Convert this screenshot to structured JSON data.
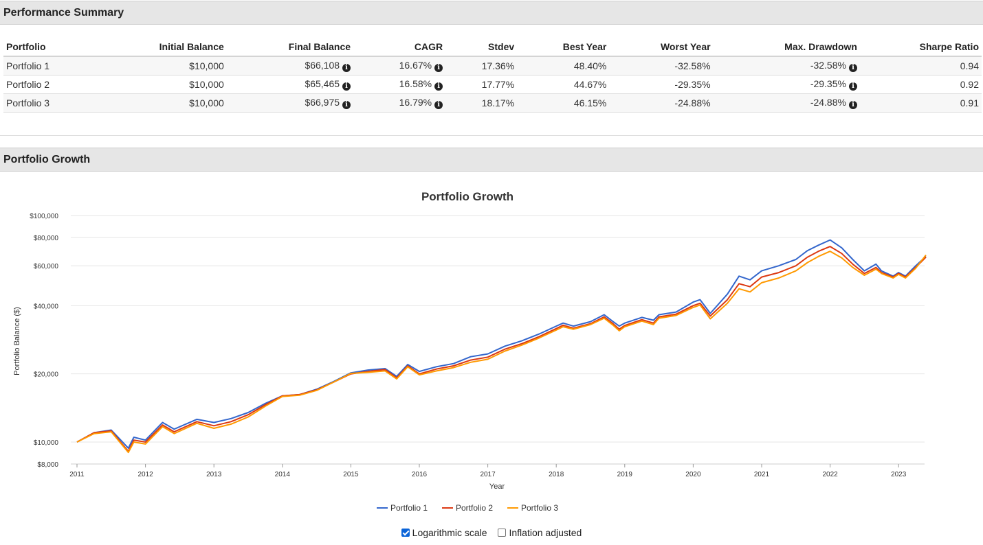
{
  "performance": {
    "title": "Performance Summary",
    "columns": [
      "Portfolio",
      "Initial Balance",
      "Final Balance",
      "CAGR",
      "Stdev",
      "Best Year",
      "Worst Year",
      "Max. Drawdown",
      "Sharpe Ratio"
    ],
    "rows": [
      {
        "portfolio": "Portfolio 1",
        "initial": "$10,000",
        "final": "$66,108",
        "cagr": "16.67%",
        "stdev": "17.36%",
        "best": "48.40%",
        "worst": "-32.58%",
        "drawdown": "-32.58%",
        "sharpe": "0.94"
      },
      {
        "portfolio": "Portfolio 2",
        "initial": "$10,000",
        "final": "$65,465",
        "cagr": "16.58%",
        "stdev": "17.77%",
        "best": "44.67%",
        "worst": "-29.35%",
        "drawdown": "-29.35%",
        "sharpe": "0.92"
      },
      {
        "portfolio": "Portfolio 3",
        "initial": "$10,000",
        "final": "$66,975",
        "cagr": "16.79%",
        "stdev": "18.17%",
        "best": "46.15%",
        "worst": "-24.88%",
        "drawdown": "-24.88%",
        "sharpe": "0.91"
      }
    ]
  },
  "growth": {
    "section_title": "Portfolio Growth"
  },
  "options": {
    "log_scale_label": "Logarithmic scale",
    "log_scale_checked": true,
    "inflation_label": "Inflation adjusted",
    "inflation_checked": false
  },
  "chart_data": {
    "type": "line",
    "title": "Portfolio Growth",
    "xlabel": "Year",
    "ylabel": "Portfolio Balance ($)",
    "y_scale": "log",
    "ylim": [
      8000,
      100000
    ],
    "xlim": [
      2011.0,
      2023.4
    ],
    "y_ticks": [
      {
        "value": 8000,
        "label": "$8,000"
      },
      {
        "value": 10000,
        "label": "$10,000"
      },
      {
        "value": 20000,
        "label": "$20,000"
      },
      {
        "value": 40000,
        "label": "$40,000"
      },
      {
        "value": 60000,
        "label": "$60,000"
      },
      {
        "value": 80000,
        "label": "$80,000"
      },
      {
        "value": 100000,
        "label": "$100,000"
      }
    ],
    "x_ticks": [
      "2011",
      "2012",
      "2013",
      "2014",
      "2015",
      "2016",
      "2017",
      "2018",
      "2019",
      "2020",
      "2021",
      "2022",
      "2023"
    ],
    "legend_position": "bottom",
    "series": [
      {
        "name": "Portfolio 1",
        "color": "#3366cc",
        "points": [
          [
            2011.0,
            10000
          ],
          [
            2011.25,
            11000
          ],
          [
            2011.5,
            11300
          ],
          [
            2011.75,
            9400
          ],
          [
            2011.83,
            10500
          ],
          [
            2012.0,
            10200
          ],
          [
            2012.25,
            12200
          ],
          [
            2012.42,
            11400
          ],
          [
            2012.75,
            12600
          ],
          [
            2013.0,
            12200
          ],
          [
            2013.25,
            12700
          ],
          [
            2013.5,
            13500
          ],
          [
            2013.75,
            14800
          ],
          [
            2014.0,
            16000
          ],
          [
            2014.25,
            16200
          ],
          [
            2014.5,
            17100
          ],
          [
            2014.75,
            18500
          ],
          [
            2015.0,
            20200
          ],
          [
            2015.25,
            20800
          ],
          [
            2015.5,
            21100
          ],
          [
            2015.67,
            19500
          ],
          [
            2015.83,
            22000
          ],
          [
            2016.0,
            20500
          ],
          [
            2016.25,
            21500
          ],
          [
            2016.5,
            22200
          ],
          [
            2016.75,
            23800
          ],
          [
            2017.0,
            24500
          ],
          [
            2017.25,
            26500
          ],
          [
            2017.5,
            28000
          ],
          [
            2017.75,
            30000
          ],
          [
            2018.0,
            32500
          ],
          [
            2018.1,
            33500
          ],
          [
            2018.25,
            32500
          ],
          [
            2018.5,
            34000
          ],
          [
            2018.7,
            36500
          ],
          [
            2018.83,
            34000
          ],
          [
            2018.92,
            32500
          ],
          [
            2019.0,
            33500
          ],
          [
            2019.25,
            35500
          ],
          [
            2019.42,
            34500
          ],
          [
            2019.5,
            36500
          ],
          [
            2019.75,
            37500
          ],
          [
            2020.0,
            41500
          ],
          [
            2020.1,
            42500
          ],
          [
            2020.25,
            37000
          ],
          [
            2020.5,
            45000
          ],
          [
            2020.67,
            54000
          ],
          [
            2020.83,
            52000
          ],
          [
            2021.0,
            57000
          ],
          [
            2021.25,
            60000
          ],
          [
            2021.5,
            64000
          ],
          [
            2021.67,
            70000
          ],
          [
            2021.83,
            74000
          ],
          [
            2022.0,
            78000
          ],
          [
            2022.17,
            72000
          ],
          [
            2022.33,
            64000
          ],
          [
            2022.5,
            57000
          ],
          [
            2022.67,
            61000
          ],
          [
            2022.75,
            57000
          ],
          [
            2022.92,
            54000
          ],
          [
            2023.0,
            56000
          ],
          [
            2023.1,
            54000
          ],
          [
            2023.25,
            60000
          ],
          [
            2023.4,
            66000
          ]
        ]
      },
      {
        "name": "Portfolio 2",
        "color": "#dc3912",
        "points": [
          [
            2011.0,
            10000
          ],
          [
            2011.25,
            11000
          ],
          [
            2011.5,
            11200
          ],
          [
            2011.75,
            9100
          ],
          [
            2011.83,
            10200
          ],
          [
            2012.0,
            10000
          ],
          [
            2012.25,
            11900
          ],
          [
            2012.42,
            11100
          ],
          [
            2012.75,
            12300
          ],
          [
            2013.0,
            11800
          ],
          [
            2013.25,
            12300
          ],
          [
            2013.5,
            13200
          ],
          [
            2013.75,
            14600
          ],
          [
            2014.0,
            16000
          ],
          [
            2014.25,
            16200
          ],
          [
            2014.5,
            17000
          ],
          [
            2014.75,
            18400
          ],
          [
            2015.0,
            20000
          ],
          [
            2015.25,
            20500
          ],
          [
            2015.5,
            20900
          ],
          [
            2015.67,
            19200
          ],
          [
            2015.83,
            21700
          ],
          [
            2016.0,
            20000
          ],
          [
            2016.25,
            21000
          ],
          [
            2016.5,
            21700
          ],
          [
            2016.75,
            23000
          ],
          [
            2017.0,
            23700
          ],
          [
            2017.25,
            25700
          ],
          [
            2017.5,
            27200
          ],
          [
            2017.75,
            29200
          ],
          [
            2018.0,
            31700
          ],
          [
            2018.1,
            32800
          ],
          [
            2018.25,
            31800
          ],
          [
            2018.5,
            33300
          ],
          [
            2018.7,
            35700
          ],
          [
            2018.83,
            33300
          ],
          [
            2018.92,
            31500
          ],
          [
            2019.0,
            32700
          ],
          [
            2019.25,
            34700
          ],
          [
            2019.42,
            33500
          ],
          [
            2019.5,
            35700
          ],
          [
            2019.75,
            36700
          ],
          [
            2020.0,
            40000
          ],
          [
            2020.1,
            41000
          ],
          [
            2020.25,
            36000
          ],
          [
            2020.5,
            42500
          ],
          [
            2020.67,
            50000
          ],
          [
            2020.83,
            48500
          ],
          [
            2021.0,
            53500
          ],
          [
            2021.25,
            56000
          ],
          [
            2021.5,
            60000
          ],
          [
            2021.67,
            65500
          ],
          [
            2021.83,
            69500
          ],
          [
            2022.0,
            73000
          ],
          [
            2022.17,
            68000
          ],
          [
            2022.33,
            61000
          ],
          [
            2022.5,
            55500
          ],
          [
            2022.67,
            59000
          ],
          [
            2022.75,
            56000
          ],
          [
            2022.92,
            53500
          ],
          [
            2023.0,
            55500
          ],
          [
            2023.1,
            53500
          ],
          [
            2023.25,
            59000
          ],
          [
            2023.4,
            65500
          ]
        ]
      },
      {
        "name": "Portfolio 3",
        "color": "#ff9900",
        "points": [
          [
            2011.0,
            10000
          ],
          [
            2011.25,
            10900
          ],
          [
            2011.5,
            11100
          ],
          [
            2011.75,
            9000
          ],
          [
            2011.83,
            10000
          ],
          [
            2012.0,
            9800
          ],
          [
            2012.25,
            11700
          ],
          [
            2012.42,
            10900
          ],
          [
            2012.75,
            12100
          ],
          [
            2013.0,
            11500
          ],
          [
            2013.25,
            12000
          ],
          [
            2013.5,
            12900
          ],
          [
            2013.75,
            14400
          ],
          [
            2014.0,
            15900
          ],
          [
            2014.25,
            16100
          ],
          [
            2014.5,
            16900
          ],
          [
            2014.75,
            18400
          ],
          [
            2015.0,
            20100
          ],
          [
            2015.25,
            20300
          ],
          [
            2015.5,
            20600
          ],
          [
            2015.67,
            19000
          ],
          [
            2015.83,
            21500
          ],
          [
            2016.0,
            19800
          ],
          [
            2016.25,
            20600
          ],
          [
            2016.5,
            21300
          ],
          [
            2016.75,
            22500
          ],
          [
            2017.0,
            23200
          ],
          [
            2017.25,
            25200
          ],
          [
            2017.5,
            26800
          ],
          [
            2017.75,
            28800
          ],
          [
            2018.0,
            31200
          ],
          [
            2018.1,
            32300
          ],
          [
            2018.25,
            31500
          ],
          [
            2018.5,
            33000
          ],
          [
            2018.7,
            35200
          ],
          [
            2018.83,
            32800
          ],
          [
            2018.92,
            31000
          ],
          [
            2019.0,
            32300
          ],
          [
            2019.25,
            34200
          ],
          [
            2019.42,
            33000
          ],
          [
            2019.5,
            35200
          ],
          [
            2019.75,
            36200
          ],
          [
            2020.0,
            39300
          ],
          [
            2020.1,
            40300
          ],
          [
            2020.25,
            35000
          ],
          [
            2020.5,
            41000
          ],
          [
            2020.67,
            47500
          ],
          [
            2020.83,
            46000
          ],
          [
            2021.0,
            50500
          ],
          [
            2021.25,
            53000
          ],
          [
            2021.5,
            57000
          ],
          [
            2021.67,
            62000
          ],
          [
            2021.83,
            66000
          ],
          [
            2022.0,
            69500
          ],
          [
            2022.17,
            65000
          ],
          [
            2022.33,
            59000
          ],
          [
            2022.5,
            54500
          ],
          [
            2022.67,
            58000
          ],
          [
            2022.75,
            55500
          ],
          [
            2022.92,
            53000
          ],
          [
            2023.0,
            55000
          ],
          [
            2023.1,
            53000
          ],
          [
            2023.25,
            58500
          ],
          [
            2023.4,
            66975
          ]
        ]
      }
    ]
  }
}
